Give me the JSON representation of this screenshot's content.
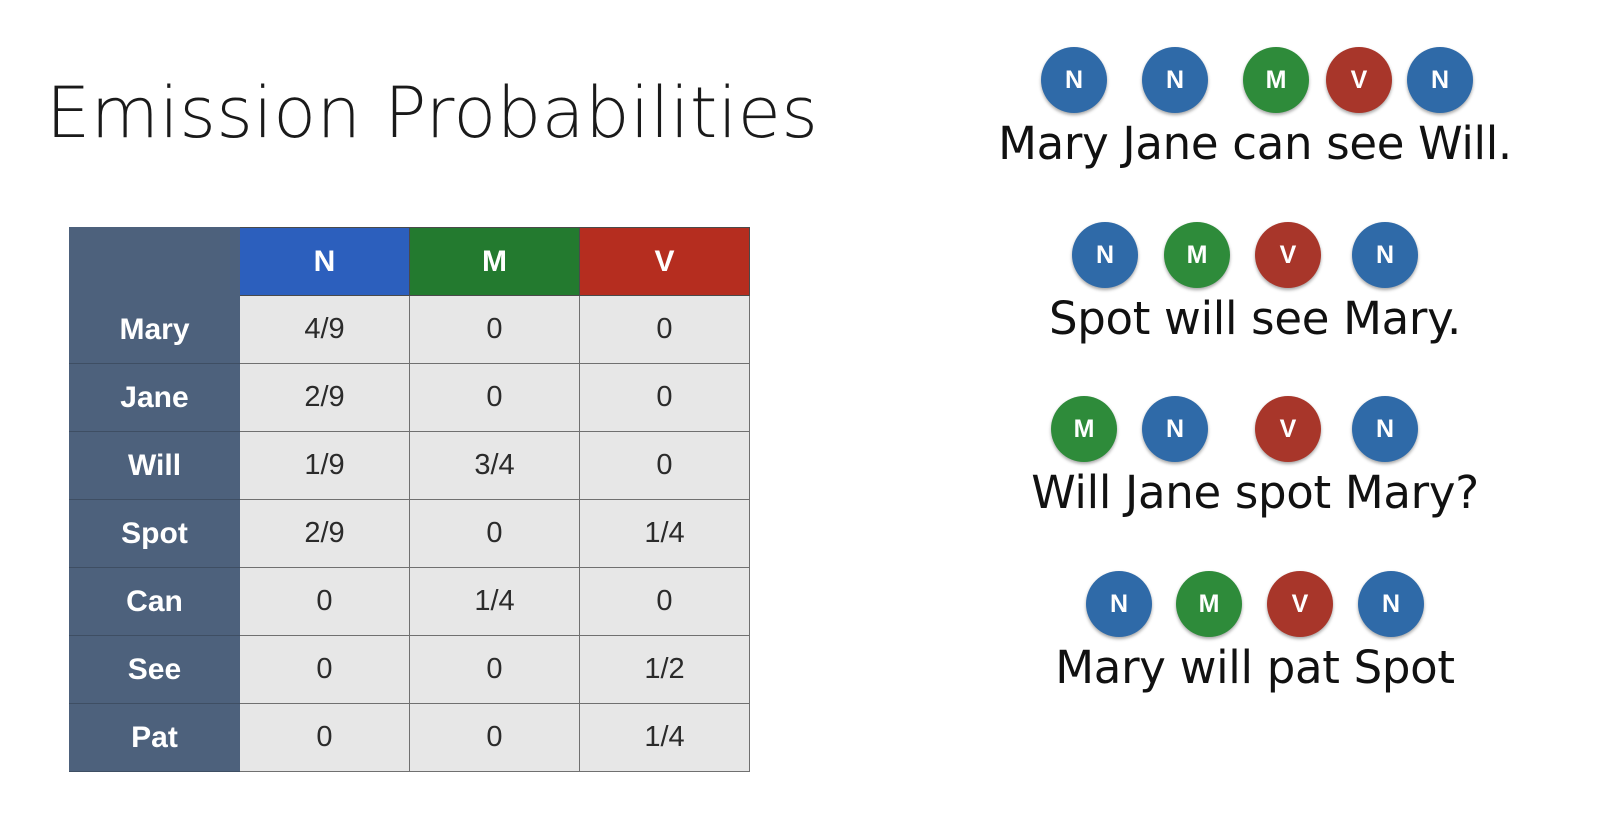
{
  "title": "Emission Probabilities",
  "colors": {
    "N": "#2f6aa8",
    "M": "#2e8b3a",
    "V": "#a8362a"
  },
  "table": {
    "columns": [
      "N",
      "M",
      "V"
    ],
    "rows": [
      {
        "word": "Mary",
        "values": [
          "4/9",
          "0",
          "0"
        ]
      },
      {
        "word": "Jane",
        "values": [
          "2/9",
          "0",
          "0"
        ]
      },
      {
        "word": "Will",
        "values": [
          "1/9",
          "3/4",
          "0"
        ]
      },
      {
        "word": "Spot",
        "values": [
          "2/9",
          "0",
          "1/4"
        ]
      },
      {
        "word": "Can",
        "values": [
          "0",
          "1/4",
          "0"
        ]
      },
      {
        "word": "See",
        "values": [
          "0",
          "0",
          "1/2"
        ]
      },
      {
        "word": "Pat",
        "values": [
          "0",
          "0",
          "1/4"
        ]
      }
    ]
  },
  "sentences": [
    {
      "text": "Mary Jane can see Will.",
      "tags": [
        "N",
        "N",
        "M",
        "V",
        "N"
      ]
    },
    {
      "text": "Spot will see Mary.",
      "tags": [
        "N",
        "M",
        "V",
        "N"
      ]
    },
    {
      "text": "Will Jane spot Mary?",
      "tags": [
        "M",
        "N",
        "V",
        "N"
      ]
    },
    {
      "text": "Mary will pat Spot",
      "tags": [
        "N",
        "M",
        "V",
        "N"
      ]
    }
  ]
}
